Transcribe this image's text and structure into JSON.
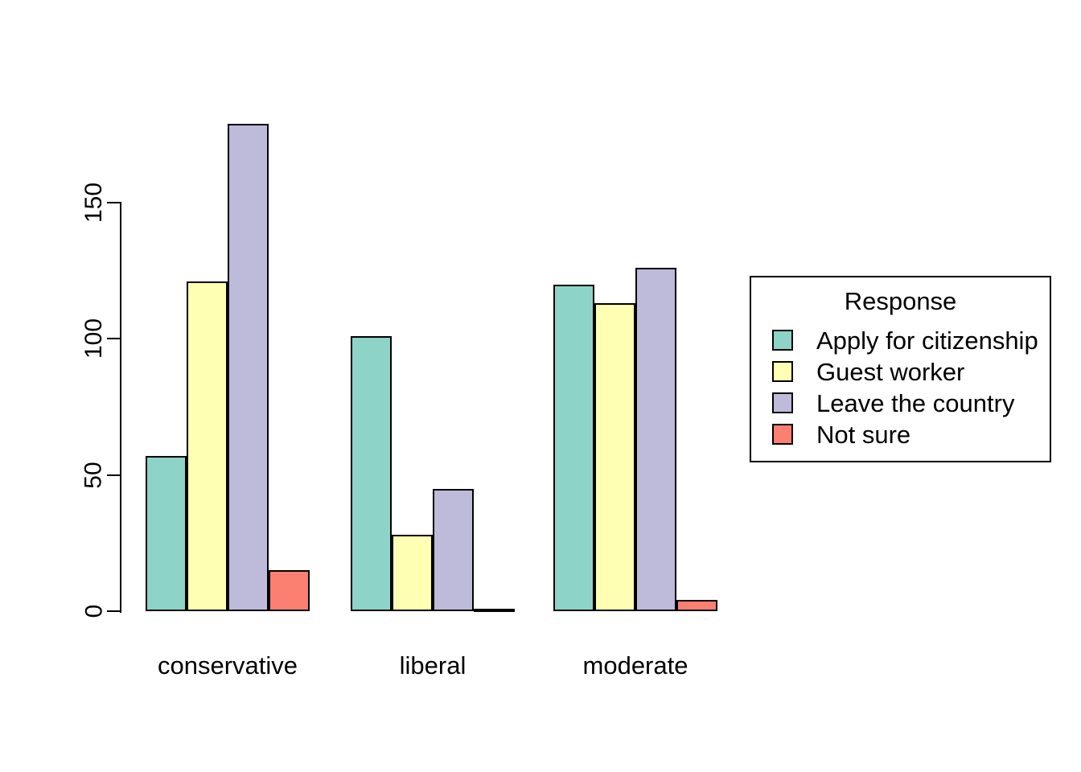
{
  "chart_data": {
    "type": "bar",
    "subtype": "grouped",
    "title": "",
    "xlabel": "",
    "ylabel": "",
    "categories": [
      "conservative",
      "liberal",
      "moderate"
    ],
    "series": [
      {
        "name": "Apply for citizenship",
        "color": "#8DD3C7",
        "values": [
          57,
          101,
          120
        ]
      },
      {
        "name": "Guest worker",
        "color": "#FFFFB3",
        "values": [
          121,
          28,
          113
        ]
      },
      {
        "name": "Leave the country",
        "color": "#BEBADA",
        "values": [
          179,
          45,
          126
        ]
      },
      {
        "name": "Not sure",
        "color": "#FB8072",
        "values": [
          15,
          1,
          4
        ]
      }
    ],
    "yticks": [
      0,
      50,
      100,
      150
    ],
    "ylim": [
      0,
      179
    ],
    "grid": false,
    "background_color": "#FFFFFF",
    "bar_border_color": "#000000",
    "axis_color": "#000000",
    "text_color": "#000000",
    "legend": {
      "title": "Response",
      "position": "right",
      "entries": [
        "Apply for citizenship",
        "Guest worker",
        "Leave the country",
        "Not sure"
      ]
    }
  }
}
